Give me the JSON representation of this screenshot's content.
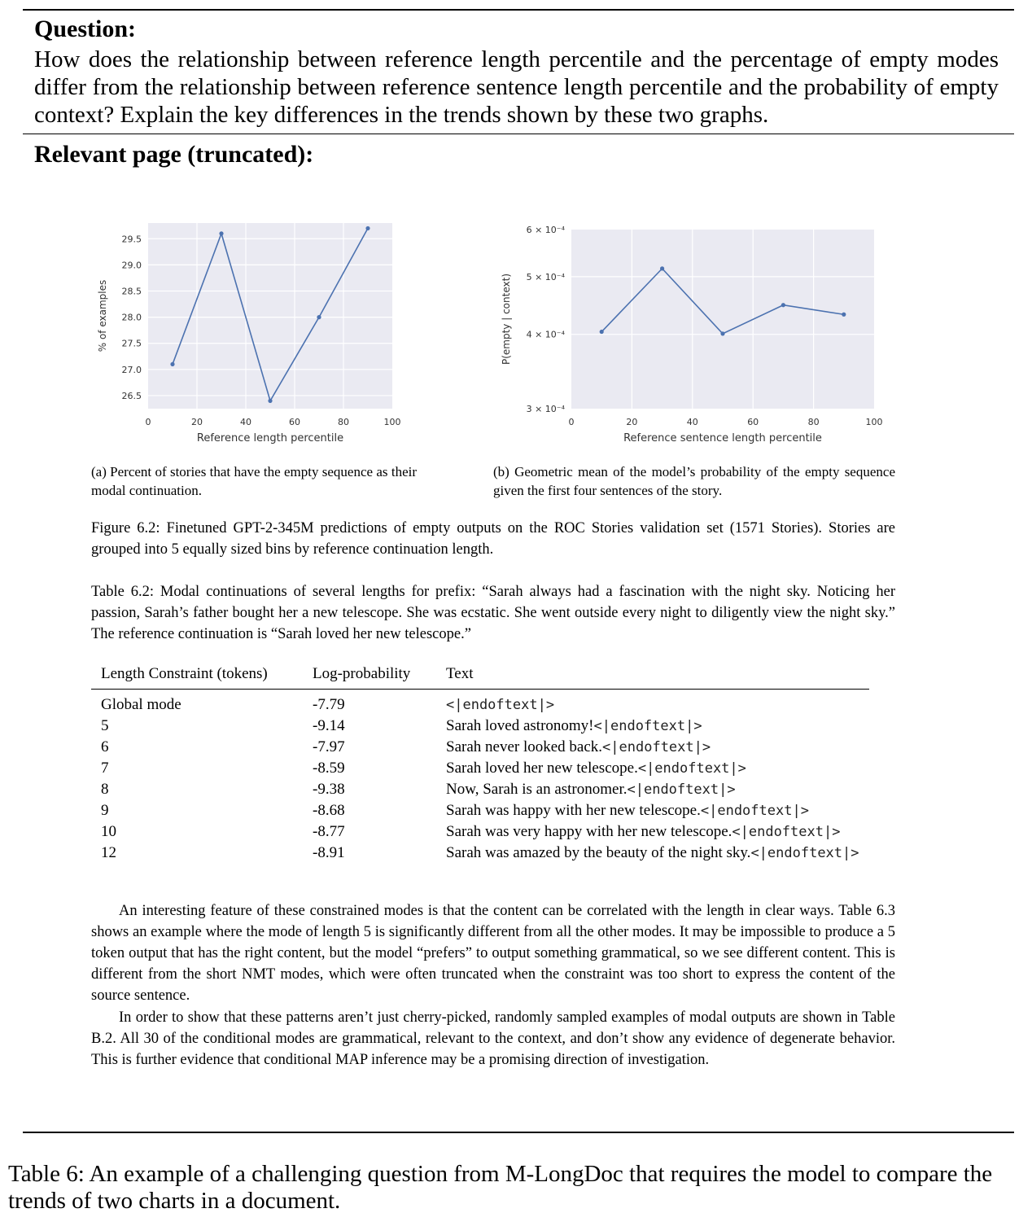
{
  "question": {
    "heading": "Question:",
    "text": "How does the relationship between reference length percentile and the percentage of empty modes differ from the relationship between reference sentence length percentile and the probability of empty context? Explain the key differences in the trends shown by these two graphs."
  },
  "page_heading": "Relevant page (truncated):",
  "chart_data": [
    {
      "type": "line",
      "title": "",
      "xlabel": "Reference length percentile",
      "ylabel": "% of examples",
      "x": [
        10,
        30,
        50,
        70,
        90
      ],
      "y": [
        27.1,
        29.6,
        26.4,
        28.0,
        29.7
      ],
      "xlim": [
        0,
        100
      ],
      "ylim": [
        26.25,
        29.8
      ],
      "xticks": [
        0,
        20,
        40,
        60,
        80,
        100
      ],
      "yticks": [
        26.5,
        27.0,
        27.5,
        28.0,
        28.5,
        29.0,
        29.5
      ],
      "ytick_labels": [
        "26.5",
        "27.0",
        "27.5",
        "28.0",
        "28.5",
        "29.0",
        "29.5"
      ],
      "grid": true
    },
    {
      "type": "line",
      "title": "",
      "xlabel": "Reference sentence length percentile",
      "ylabel": "P(empty | context)",
      "x": [
        10,
        30,
        50,
        70,
        90
      ],
      "y": [
        0.000404,
        0.000516,
        0.000401,
        0.000448,
        0.000432
      ],
      "xlim": [
        0,
        100
      ],
      "ylim": [
        0.0003,
        0.0006
      ],
      "yscale": "log",
      "xticks": [
        0,
        20,
        40,
        60,
        80,
        100
      ],
      "yticks": [
        0.0003,
        0.0004,
        0.0005,
        0.0006
      ],
      "ytick_labels": [
        "3 × 10⁻⁴",
        "4 × 10⁻⁴",
        "5 × 10⁻⁴",
        "6 × 10⁻⁴"
      ],
      "grid": true
    }
  ],
  "subcaptions": {
    "a": "(a) Percent of stories that have the empty sequence as their modal continuation.",
    "b": "(b) Geometric mean of the model’s probability of the empty sequence given the first four sentences of the story."
  },
  "figure_caption": "Figure 6.2: Finetuned GPT-2-345M predictions of empty outputs on the ROC Stories validation set (1571 Stories). Stories are grouped into 5 equally sized bins by reference continuation length.",
  "table_caption": "Table 6.2: Modal continuations of several lengths for prefix: “Sarah always had a fascination with the night sky. Noticing her passion, Sarah’s father bought her a new telescope. She was ecstatic. She went outside every night to diligently view the night sky.” The reference continuation is “Sarah loved her new telescope.”",
  "table": {
    "headers": [
      "Length Constraint (tokens)",
      "Log-probability",
      "Text"
    ],
    "rows": [
      {
        "length": "Global mode",
        "logprob": "-7.79",
        "text": "",
        "token": "<|endoftext|>"
      },
      {
        "length": "5",
        "logprob": "-9.14",
        "text": "Sarah loved astronomy!",
        "token": "<|endoftext|>"
      },
      {
        "length": "6",
        "logprob": "-7.97",
        "text": "Sarah never looked back.",
        "token": "<|endoftext|>"
      },
      {
        "length": "7",
        "logprob": "-8.59",
        "text": "Sarah loved her new telescope.",
        "token": "<|endoftext|>"
      },
      {
        "length": "8",
        "logprob": "-9.38",
        "text": "Now, Sarah is an astronomer.",
        "token": "<|endoftext|>"
      },
      {
        "length": "9",
        "logprob": "-8.68",
        "text": "Sarah was happy with her new telescope.",
        "token": "<|endoftext|>"
      },
      {
        "length": "10",
        "logprob": "-8.77",
        "text": "Sarah was very happy with her new telescope.",
        "token": "<|endoftext|>"
      },
      {
        "length": "12",
        "logprob": "-8.91",
        "text": "Sarah was amazed by the beauty of the night sky.",
        "token": "<|endoftext|>"
      }
    ]
  },
  "paragraphs": [
    "An interesting feature of these constrained modes is that the content can be correlated with the length in clear ways. Table 6.3 shows an example where the mode of length 5 is significantly different from all the other modes. It may be impossible to produce a 5 token output that has the right content, but the model “prefers” to output something grammatical, so we see different content. This is different from the short NMT modes, which were often truncated when the constraint was too short to express the content of the source sentence.",
    "In order to show that these patterns aren’t just cherry-picked, randomly sampled examples of modal outputs are shown in Table B.2. All 30 of the conditional modes are grammatical, relevant to the context, and don’t show any evidence of degenerate behavior. This is further evidence that conditional MAP inference may be a promising direction of investigation."
  ],
  "bottom_caption": "Table 6: An example of a challenging question from M-LongDoc that requires the model to compare the trends of two charts in a document.",
  "colors": {
    "plot_background": "#eaeaf2",
    "grid": "#ffffff",
    "line": "#4c72b0"
  }
}
